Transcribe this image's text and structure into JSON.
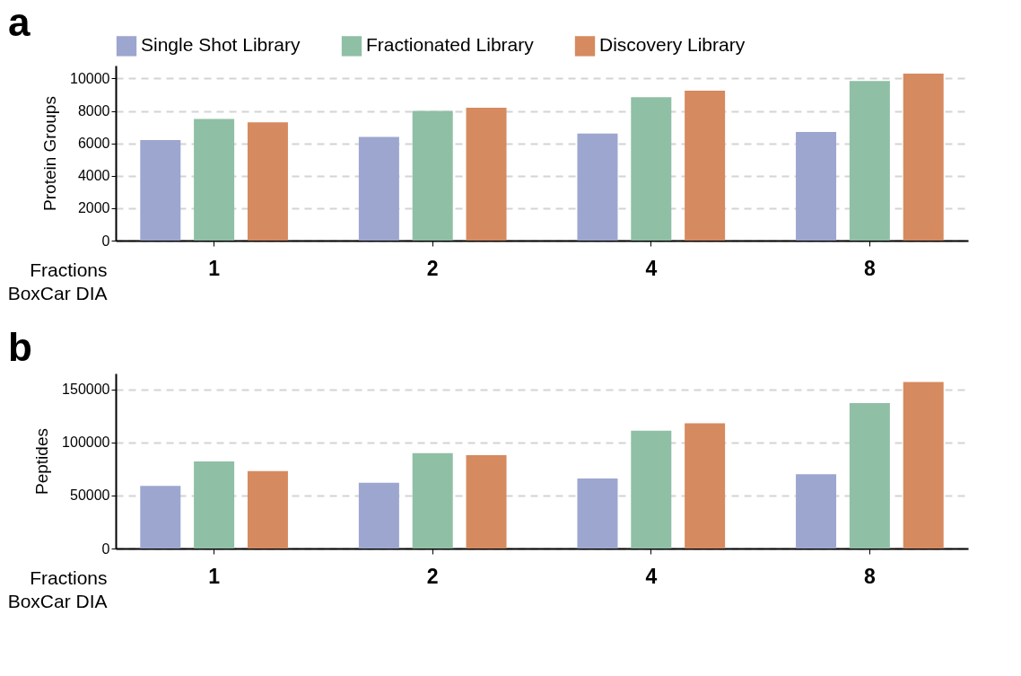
{
  "chart_data": [
    {
      "type": "bar",
      "title": "a",
      "xlabel": "Fractions\nBoxCar DIA",
      "ylabel": "Protein Groups",
      "categories": [
        "1",
        "2",
        "4",
        "8"
      ],
      "ylim": [
        0,
        10800
      ],
      "yticks": [
        0,
        2000,
        4000,
        6000,
        8000,
        10000
      ],
      "grid": "y",
      "legend": "top",
      "series": [
        {
          "name": "Single Shot Library",
          "color": "#9da6cf",
          "values": [
            6200,
            6400,
            6600,
            6700
          ]
        },
        {
          "name": "Fractionated Library",
          "color": "#8fbfa5",
          "values": [
            7500,
            8000,
            8850,
            9850
          ]
        },
        {
          "name": "Discovery Library",
          "color": "#d68a5f",
          "values": [
            7300,
            8200,
            9250,
            10300
          ]
        }
      ]
    },
    {
      "type": "bar",
      "title": "b",
      "xlabel": "Fractions\nBoxCar DIA",
      "ylabel": "Peptides",
      "categories": [
        "1",
        "2",
        "4",
        "8"
      ],
      "ylim": [
        0,
        165000
      ],
      "yticks": [
        0,
        50000,
        100000,
        150000
      ],
      "grid": "y",
      "series": [
        {
          "color": "#9da6cf",
          "values": [
            59000,
            62000,
            66000,
            70000
          ]
        },
        {
          "color": "#8fbfa5",
          "values": [
            82000,
            90000,
            111000,
            137000
          ]
        },
        {
          "color": "#d68a5f",
          "values": [
            73000,
            88000,
            118000,
            157000
          ]
        }
      ]
    }
  ]
}
